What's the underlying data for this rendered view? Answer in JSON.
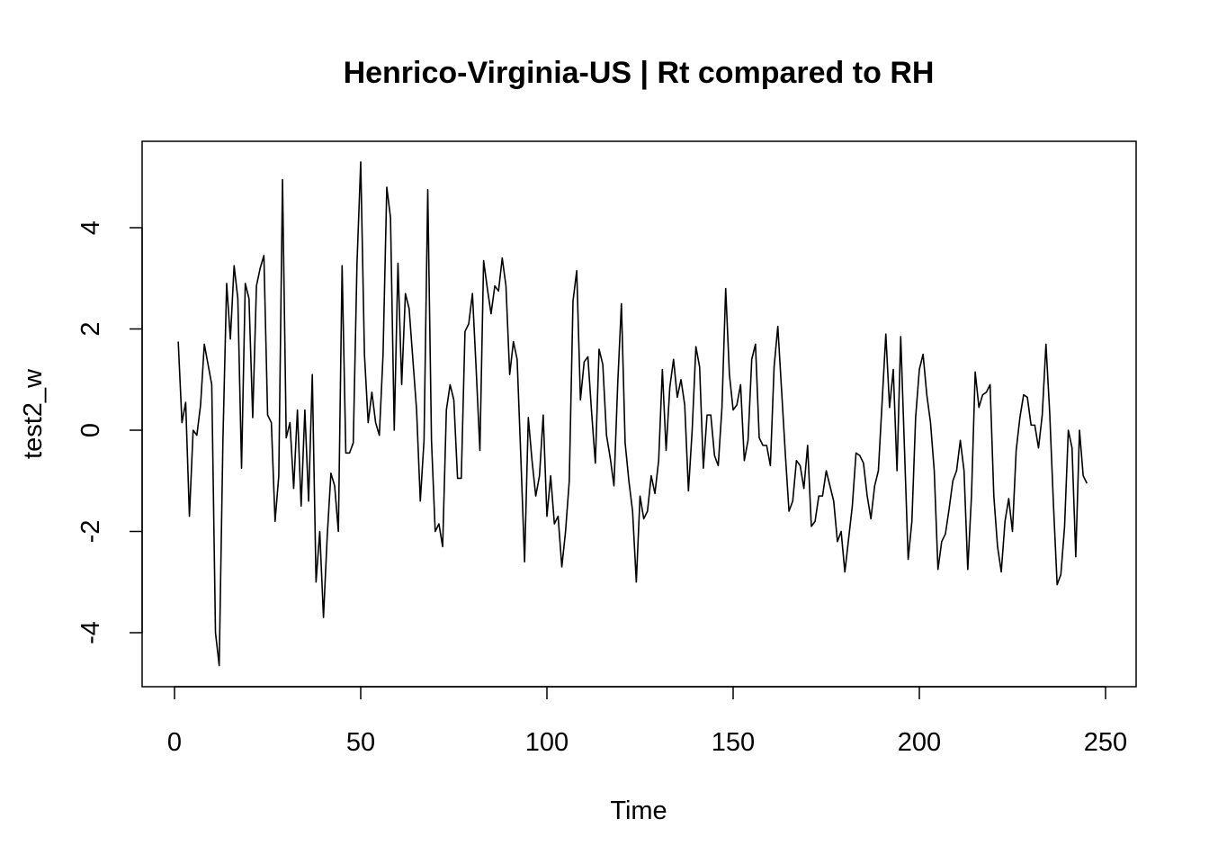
{
  "chart_data": {
    "type": "line",
    "title": "Henrico-Virginia-US | Rt compared to RH",
    "xlabel": "Time",
    "ylabel": "test2_w",
    "xlim": [
      0,
      250
    ],
    "ylim": [
      -4.7,
      5.3
    ],
    "x_ticks": [
      0,
      50,
      100,
      150,
      200,
      250
    ],
    "y_ticks": [
      -4,
      -2,
      0,
      2,
      4
    ],
    "grid": false,
    "legend": "none",
    "line_color": "#000000",
    "series": [
      {
        "x_start": 1,
        "values": [
          1.75,
          0.15,
          0.55,
          -1.7,
          0.0,
          -0.1,
          0.5,
          1.7,
          1.3,
          0.9,
          -4.0,
          -4.65,
          -0.2,
          2.9,
          1.8,
          3.25,
          2.6,
          -0.75,
          2.9,
          2.6,
          0.25,
          2.85,
          3.2,
          3.45,
          0.3,
          0.15,
          -1.8,
          -0.9,
          4.95,
          -0.15,
          0.15,
          -1.15,
          0.4,
          -1.5,
          0.4,
          -1.4,
          1.1,
          -3.0,
          -2.0,
          -3.7,
          -2.1,
          -0.85,
          -1.1,
          -2.0,
          3.25,
          -0.45,
          -0.45,
          -0.25,
          3.3,
          5.3,
          1.5,
          0.15,
          0.75,
          0.15,
          -0.1,
          1.5,
          4.8,
          4.2,
          0.0,
          3.3,
          0.9,
          2.7,
          2.4,
          1.4,
          0.4,
          -1.4,
          -0.2,
          4.75,
          -0.2,
          -2.0,
          -1.85,
          -2.3,
          0.4,
          0.9,
          0.6,
          -0.95,
          -0.95,
          1.95,
          2.1,
          2.7,
          1.2,
          -0.4,
          3.35,
          2.8,
          2.3,
          2.85,
          2.75,
          3.4,
          2.85,
          1.1,
          1.75,
          1.4,
          -0.55,
          -2.6,
          0.25,
          -0.6,
          -1.3,
          -0.9,
          0.3,
          -1.7,
          -0.9,
          -1.85,
          -1.7,
          -2.7,
          -2.0,
          -1.0,
          2.55,
          3.15,
          0.6,
          1.35,
          1.45,
          0.35,
          -0.65,
          1.6,
          1.3,
          -0.1,
          -0.55,
          -1.1,
          0.9,
          2.5,
          -0.25,
          -1.0,
          -1.6,
          -3.0,
          -1.3,
          -1.75,
          -1.6,
          -0.9,
          -1.25,
          -0.6,
          1.2,
          -0.4,
          0.85,
          1.4,
          0.65,
          1.0,
          0.5,
          -1.2,
          0.0,
          1.65,
          1.25,
          -0.75,
          0.3,
          0.3,
          -0.5,
          -0.7,
          0.45,
          2.8,
          1.1,
          0.4,
          0.5,
          0.9,
          -0.6,
          -0.2,
          1.4,
          1.7,
          -0.15,
          -0.3,
          -0.3,
          -0.7,
          1.25,
          2.05,
          0.8,
          -0.45,
          -1.6,
          -1.4,
          -0.6,
          -0.7,
          -1.15,
          -0.3,
          -1.9,
          -1.8,
          -1.3,
          -1.3,
          -0.8,
          -1.1,
          -1.4,
          -2.2,
          -2.0,
          -2.8,
          -2.15,
          -1.5,
          -0.45,
          -0.5,
          -0.65,
          -1.3,
          -1.75,
          -1.1,
          -0.8,
          0.55,
          1.9,
          0.45,
          1.2,
          -0.8,
          1.85,
          -0.35,
          -2.55,
          -1.8,
          0.25,
          1.2,
          1.5,
          0.7,
          0.15,
          -0.8,
          -2.75,
          -2.2,
          -2.05,
          -1.55,
          -1.0,
          -0.8,
          -0.2,
          -0.8,
          -2.75,
          -1.3,
          1.15,
          0.45,
          0.7,
          0.75,
          0.9,
          -1.3,
          -2.3,
          -2.8,
          -1.8,
          -1.35,
          -2.0,
          -0.4,
          0.25,
          0.7,
          0.65,
          0.1,
          0.1,
          -0.35,
          0.3,
          1.7,
          0.35,
          -1.45,
          -3.05,
          -2.85,
          -1.9,
          0.0,
          -0.35,
          -2.5,
          0.0,
          -0.9,
          -1.05
        ]
      }
    ]
  }
}
